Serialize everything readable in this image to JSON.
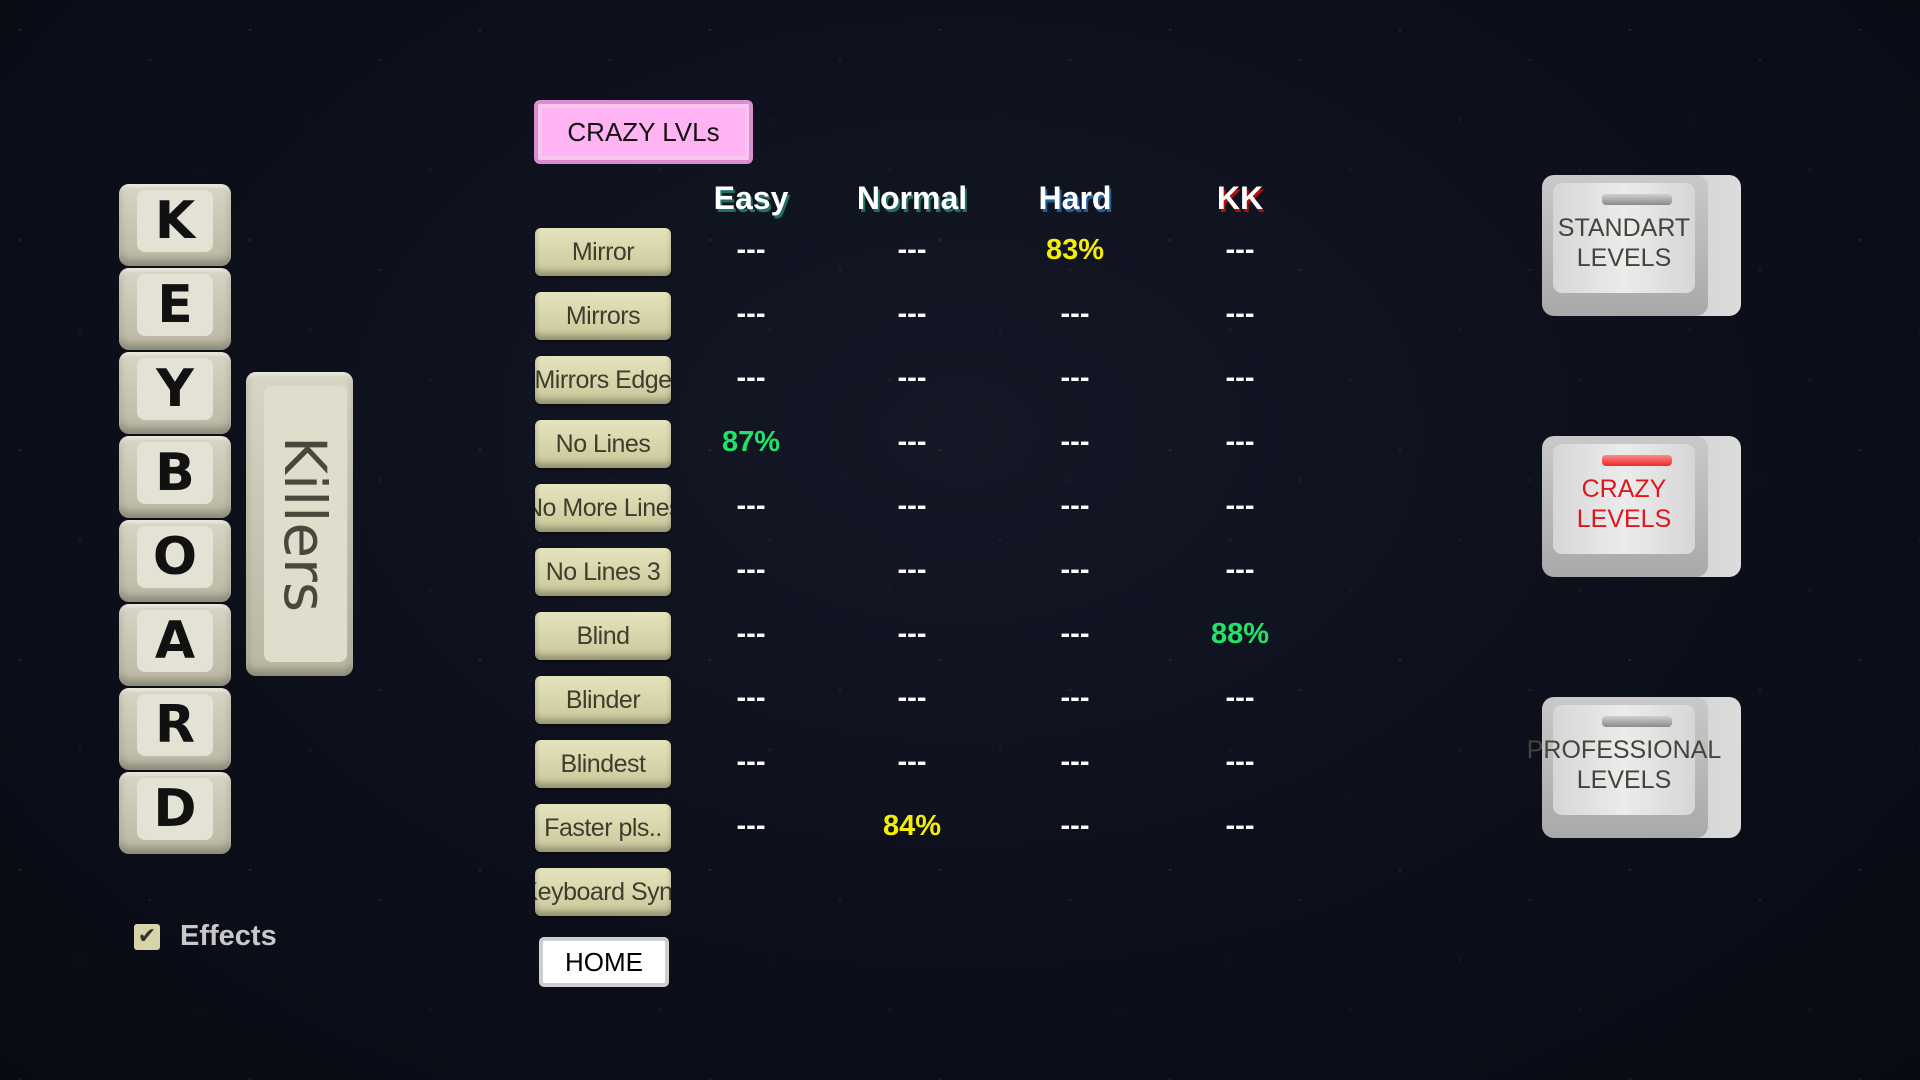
{
  "logo": {
    "letters": [
      "K",
      "E",
      "Y",
      "B",
      "O",
      "A",
      "R",
      "D"
    ],
    "subtitle": "Killers"
  },
  "section_tab": "CRAZY LVLs",
  "columns": [
    "Easy",
    "Normal",
    "Hard",
    "KK"
  ],
  "column_shadow_colors": [
    "#1e6f66",
    "#1e6f66",
    "#1e5fa0",
    "#b01010"
  ],
  "score_colors": {
    "none": "#ffffff",
    "yellow": "#f5ee00",
    "green": "#22e36a"
  },
  "levels": [
    {
      "name": "Mirror",
      "scores": [
        {
          "v": "---",
          "c": "none"
        },
        {
          "v": "---",
          "c": "none"
        },
        {
          "v": "83%",
          "c": "yellow"
        },
        {
          "v": "---",
          "c": "none"
        }
      ]
    },
    {
      "name": "Mirrors",
      "scores": [
        {
          "v": "---",
          "c": "none"
        },
        {
          "v": "---",
          "c": "none"
        },
        {
          "v": "---",
          "c": "none"
        },
        {
          "v": "---",
          "c": "none"
        }
      ]
    },
    {
      "name": "Mirrors Edge",
      "scores": [
        {
          "v": "---",
          "c": "none"
        },
        {
          "v": "---",
          "c": "none"
        },
        {
          "v": "---",
          "c": "none"
        },
        {
          "v": "---",
          "c": "none"
        }
      ]
    },
    {
      "name": "No Lines",
      "scores": [
        {
          "v": "87%",
          "c": "green"
        },
        {
          "v": "---",
          "c": "none"
        },
        {
          "v": "---",
          "c": "none"
        },
        {
          "v": "---",
          "c": "none"
        }
      ]
    },
    {
      "name": "No More Lines",
      "scores": [
        {
          "v": "---",
          "c": "none"
        },
        {
          "v": "---",
          "c": "none"
        },
        {
          "v": "---",
          "c": "none"
        },
        {
          "v": "---",
          "c": "none"
        }
      ]
    },
    {
      "name": "No Lines 3",
      "scores": [
        {
          "v": "---",
          "c": "none"
        },
        {
          "v": "---",
          "c": "none"
        },
        {
          "v": "---",
          "c": "none"
        },
        {
          "v": "---",
          "c": "none"
        }
      ]
    },
    {
      "name": "Blind",
      "scores": [
        {
          "v": "---",
          "c": "none"
        },
        {
          "v": "---",
          "c": "none"
        },
        {
          "v": "---",
          "c": "none"
        },
        {
          "v": "88%",
          "c": "green"
        }
      ]
    },
    {
      "name": "Blinder",
      "scores": [
        {
          "v": "---",
          "c": "none"
        },
        {
          "v": "---",
          "c": "none"
        },
        {
          "v": "---",
          "c": "none"
        },
        {
          "v": "---",
          "c": "none"
        }
      ]
    },
    {
      "name": "Blindest",
      "scores": [
        {
          "v": "---",
          "c": "none"
        },
        {
          "v": "---",
          "c": "none"
        },
        {
          "v": "---",
          "c": "none"
        },
        {
          "v": "---",
          "c": "none"
        }
      ]
    },
    {
      "name": "Faster pls..",
      "scores": [
        {
          "v": "---",
          "c": "none"
        },
        {
          "v": "84%",
          "c": "yellow"
        },
        {
          "v": "---",
          "c": "none"
        },
        {
          "v": "---",
          "c": "none"
        }
      ]
    },
    {
      "name": "Keyboard Sync",
      "scores": []
    }
  ],
  "home_label": "HOME",
  "effects": {
    "label": "Effects",
    "checked": true
  },
  "modes": [
    {
      "line1": "STANDART",
      "line2": "LEVELS",
      "active": false
    },
    {
      "line1": "CRAZY",
      "line2": "LEVELS",
      "active": true
    },
    {
      "line1": "PROFESSIONAL",
      "line2": "LEVELS",
      "active": false
    }
  ]
}
